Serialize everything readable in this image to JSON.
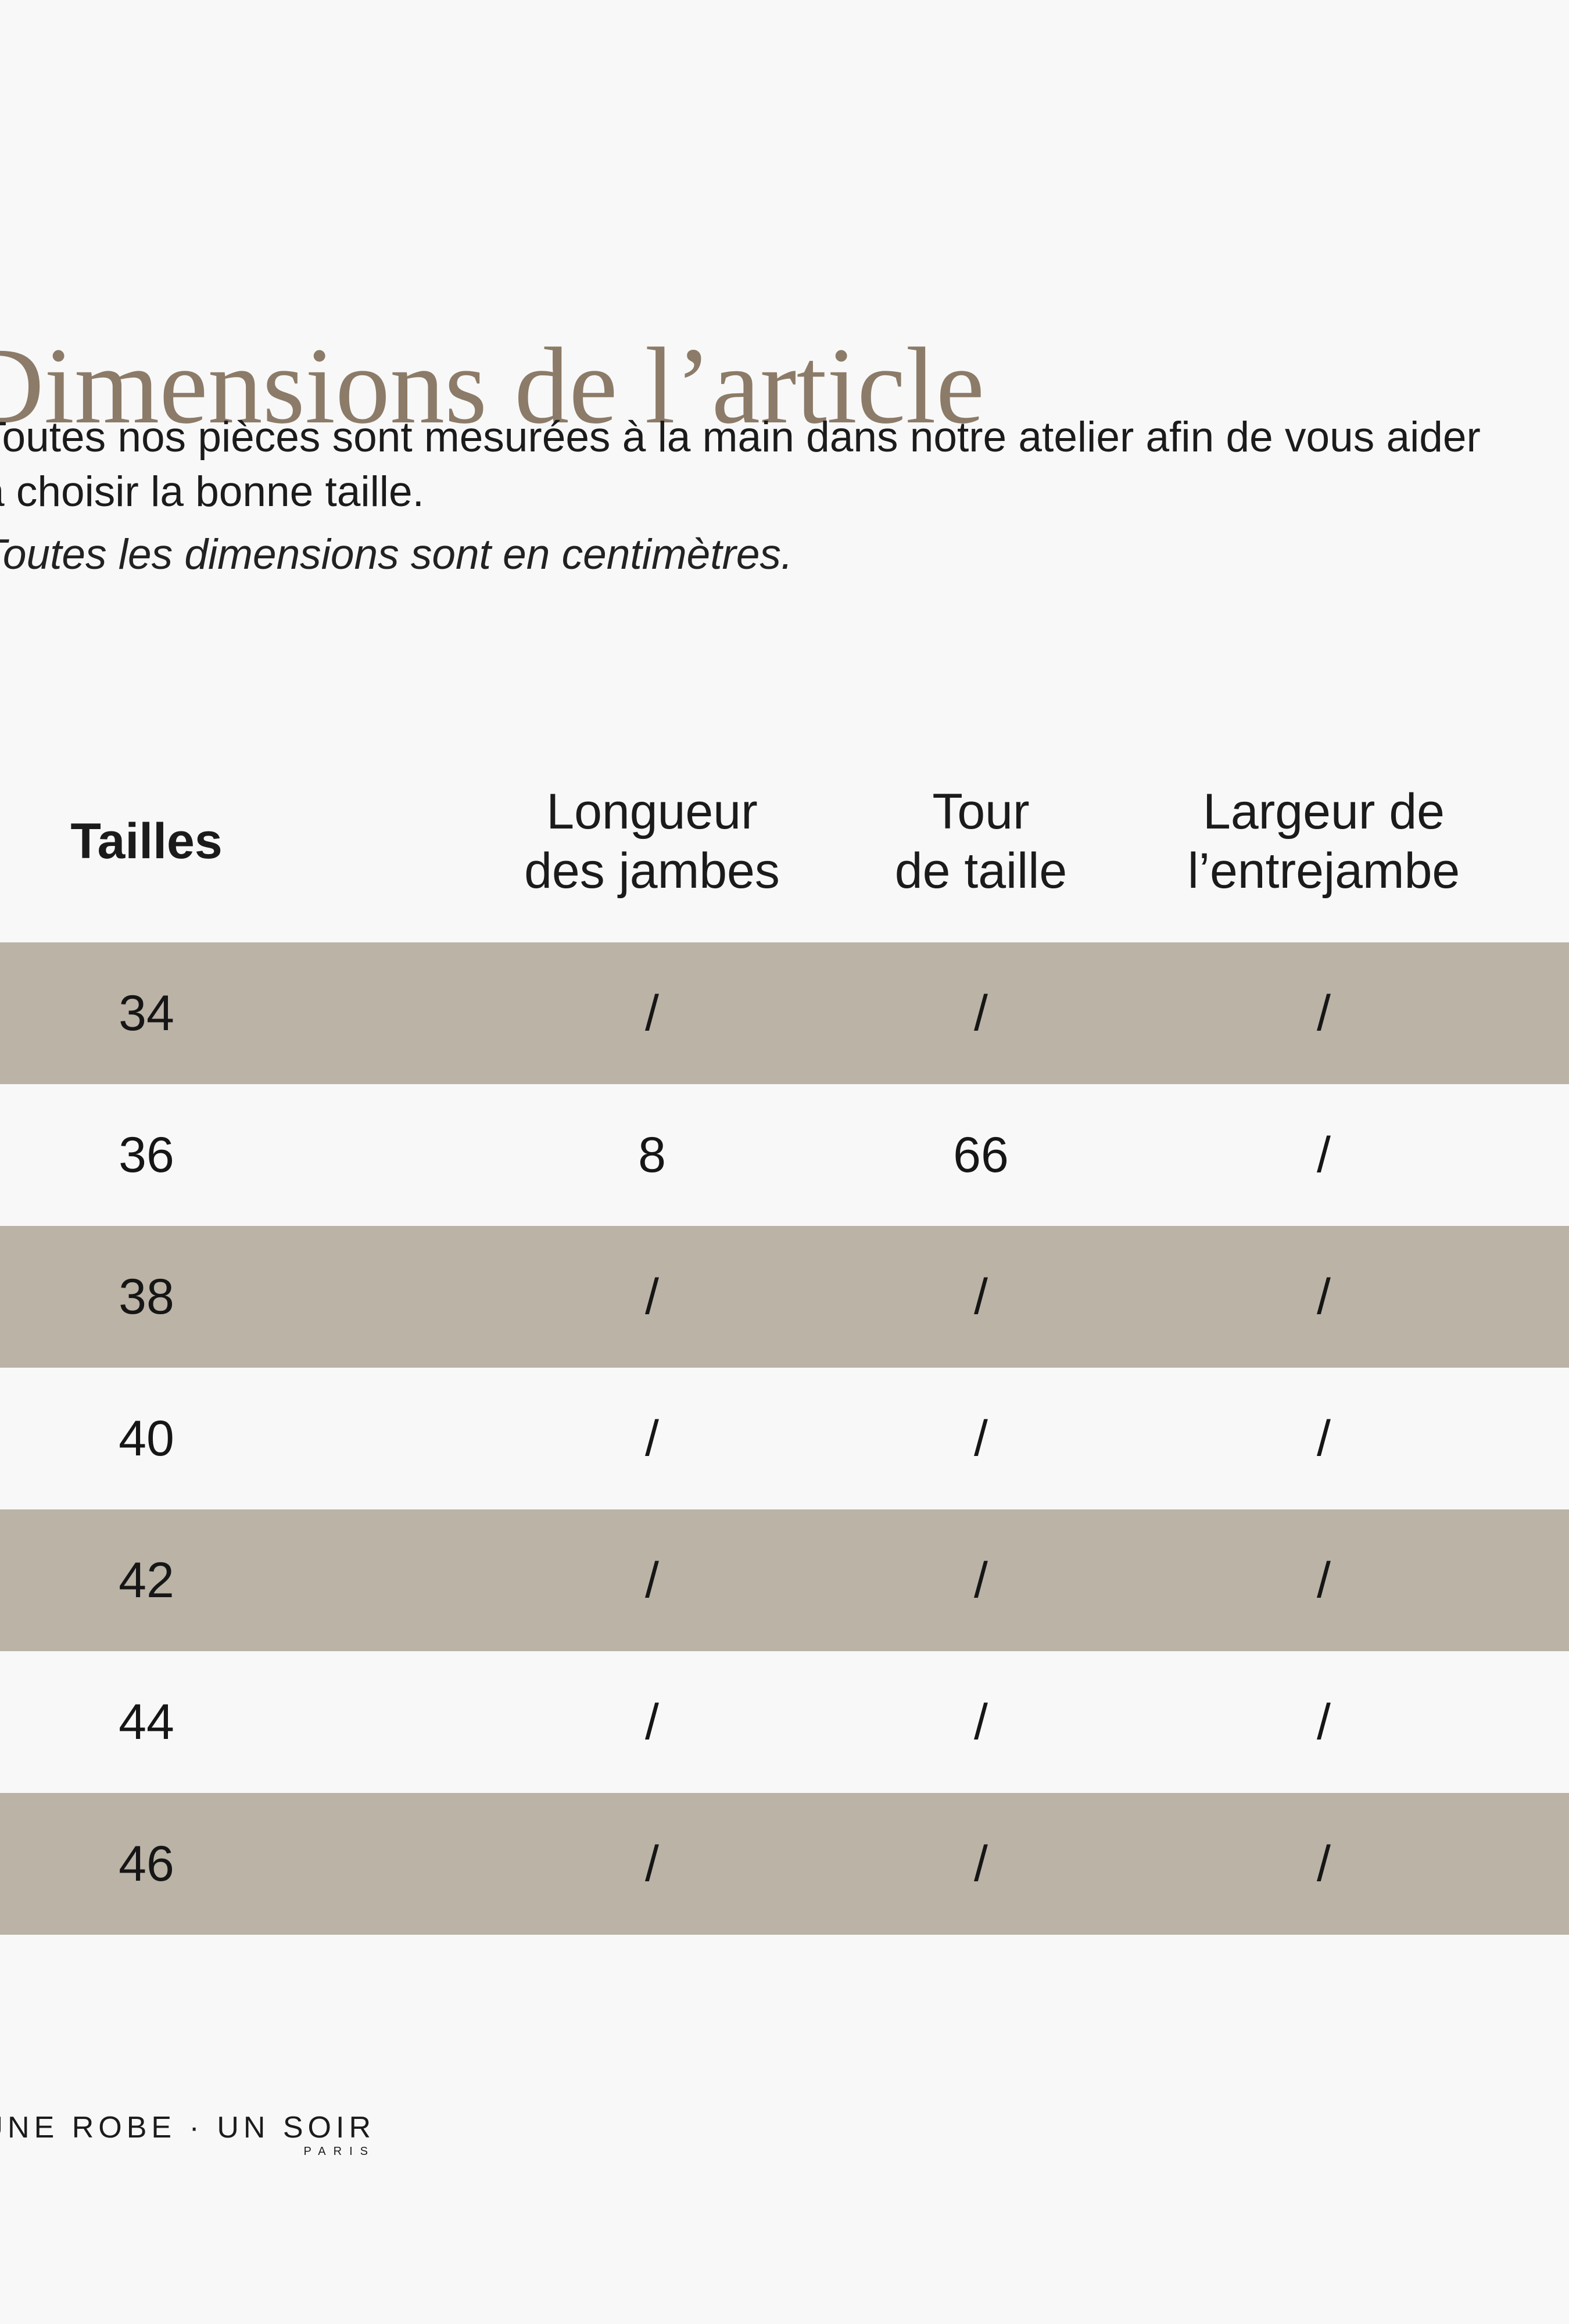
{
  "colors": {
    "background": "#f8f8f8",
    "row_highlight": "#bab3a6",
    "title": "#8c7b68",
    "text": "#1b1b1b"
  },
  "title": "Dimensions de l’article",
  "intro": {
    "lines": [
      "Toutes nos pièces sont mesurées à la main dans notre atelier afin de vous aider",
      "à choisir la bonne taille."
    ],
    "note": "Toutes les dimensions sont en centimètres."
  },
  "table": {
    "size_header": "Tailles",
    "columns": [
      {
        "line1": "Longueur",
        "line2": "des jambes"
      },
      {
        "line1": "Tour",
        "line2": "de taille"
      },
      {
        "line1": "Largeur de",
        "line2": "l’entrejambe"
      }
    ],
    "rows": [
      {
        "size": "34",
        "values": [
          "/",
          "/",
          "/"
        ]
      },
      {
        "size": "36",
        "values": [
          "8",
          "66",
          "/"
        ]
      },
      {
        "size": "38",
        "values": [
          "/",
          "/",
          "/"
        ]
      },
      {
        "size": "40",
        "values": [
          "/",
          "/",
          "/"
        ]
      },
      {
        "size": "42",
        "values": [
          "/",
          "/",
          "/"
        ]
      },
      {
        "size": "44",
        "values": [
          "/",
          "/",
          "/"
        ]
      },
      {
        "size": "46",
        "values": [
          "/",
          "/",
          "/"
        ]
      }
    ]
  },
  "footer": {
    "brand": "UNE ROBE · UN SOIR",
    "city": "PARIS"
  }
}
